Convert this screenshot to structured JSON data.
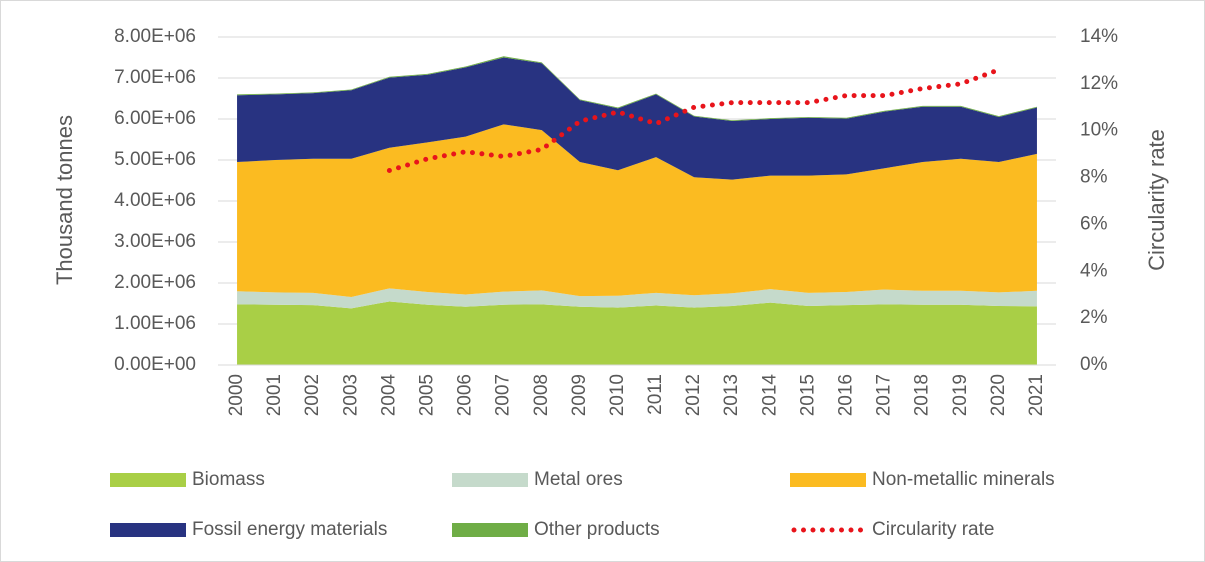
{
  "chart_data": {
    "type": "stacked-area",
    "y_label": "Thousand tonnes",
    "y2_label": "Circularity rate",
    "categories": [
      "2000",
      "2001",
      "2002",
      "2003",
      "2004",
      "2005",
      "2006",
      "2007",
      "2008",
      "2009",
      "2010",
      "2011",
      "2012",
      "2013",
      "2014",
      "2015",
      "2016",
      "2017",
      "2018",
      "2019",
      "2020",
      "2021"
    ],
    "series": [
      {
        "name": "Biomass",
        "color": "#a9cf46",
        "values": [
          1480000,
          1470000,
          1460000,
          1380000,
          1550000,
          1470000,
          1420000,
          1470000,
          1480000,
          1420000,
          1400000,
          1450000,
          1400000,
          1440000,
          1520000,
          1440000,
          1460000,
          1480000,
          1470000,
          1470000,
          1440000,
          1430000
        ]
      },
      {
        "name": "Metal ores",
        "color": "#c5dacb",
        "values": [
          320000,
          300000,
          300000,
          280000,
          320000,
          310000,
          300000,
          320000,
          340000,
          260000,
          290000,
          310000,
          300000,
          310000,
          330000,
          320000,
          320000,
          360000,
          340000,
          340000,
          330000,
          380000
        ]
      },
      {
        "name": "Non-metallic minerals",
        "color": "#fbbb21",
        "values": [
          3150000,
          3230000,
          3270000,
          3370000,
          3430000,
          3650000,
          3850000,
          4080000,
          3910000,
          3270000,
          3060000,
          3310000,
          2880000,
          2770000,
          2770000,
          2860000,
          2870000,
          2960000,
          3140000,
          3220000,
          3180000,
          3340000
        ]
      },
      {
        "name": "Fossil energy materials",
        "color": "#283381",
        "values": [
          1630000,
          1600000,
          1600000,
          1670000,
          1710000,
          1650000,
          1690000,
          1630000,
          1630000,
          1510000,
          1510000,
          1530000,
          1480000,
          1430000,
          1380000,
          1410000,
          1360000,
          1380000,
          1350000,
          1270000,
          1100000,
          1130000
        ]
      },
      {
        "name": "Other products",
        "color": "#6fad46",
        "values": [
          20000,
          20000,
          20000,
          20000,
          20000,
          20000,
          20000,
          30000,
          20000,
          20000,
          20000,
          20000,
          20000,
          20000,
          20000,
          20000,
          20000,
          20000,
          20000,
          20000,
          20000,
          20000
        ]
      },
      {
        "name": "Circularity rate",
        "color": "#e8141b",
        "axis": "y2",
        "values": [
          null,
          null,
          null,
          null,
          8.3,
          8.8,
          9.1,
          8.9,
          9.2,
          10.4,
          10.8,
          10.3,
          11.0,
          11.2,
          11.2,
          11.2,
          11.5,
          11.5,
          11.8,
          12.0,
          12.6,
          null
        ]
      }
    ],
    "ylim": [
      0,
      8000000
    ],
    "yticks": [
      {
        "value": 0,
        "label": "0.00E+00"
      },
      {
        "value": 1000000,
        "label": "1.00E+06"
      },
      {
        "value": 2000000,
        "label": "2.00E+06"
      },
      {
        "value": 3000000,
        "label": "3.00E+06"
      },
      {
        "value": 4000000,
        "label": "4.00E+06"
      },
      {
        "value": 5000000,
        "label": "5.00E+06"
      },
      {
        "value": 6000000,
        "label": "6.00E+06"
      },
      {
        "value": 7000000,
        "label": "7.00E+06"
      },
      {
        "value": 8000000,
        "label": "8.00E+06"
      }
    ],
    "y2lim": [
      0,
      14
    ],
    "y2ticks": [
      {
        "value": 0,
        "label": "0%"
      },
      {
        "value": 2,
        "label": "2%"
      },
      {
        "value": 4,
        "label": "4%"
      },
      {
        "value": 6,
        "label": "6%"
      },
      {
        "value": 8,
        "label": "8%"
      },
      {
        "value": 10,
        "label": "10%"
      },
      {
        "value": 12,
        "label": "12%"
      },
      {
        "value": 14,
        "label": "14%"
      }
    ],
    "grid": true,
    "legend": "bottom"
  }
}
